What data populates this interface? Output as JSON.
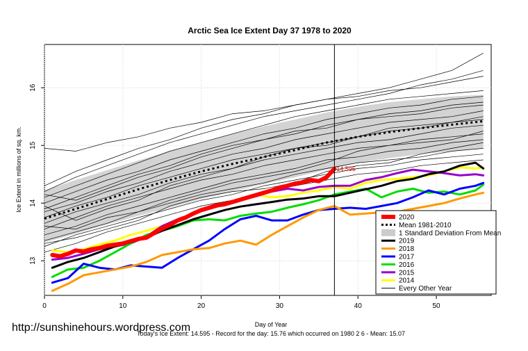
{
  "chart_data": {
    "type": "line",
    "title": "Arctic Sea Ice Extent Day 37 1978 to 2020",
    "xlabel": "Day of Year",
    "ylabel": "Ice Extent in millions of sq. km.",
    "xlim": [
      0,
      57
    ],
    "ylim": [
      12.4,
      16.75
    ],
    "xticks": [
      0,
      10,
      20,
      30,
      40,
      50
    ],
    "yticks": [
      13,
      14,
      15,
      16
    ],
    "grid": true,
    "legend_position": "bottom-right",
    "current_day": 37,
    "current_value_label": "14.595",
    "footer_text": "Today's Ice Extent: 14.595  - Record for the day: 15.76 which occurred on 1980 2 6  - Mean: 15.07",
    "watermark": "http://sunshinehours.wordpress.com",
    "std_band": {
      "name": "1 Standard Deviation From Mean",
      "x": [
        0,
        4,
        8,
        12,
        16,
        20,
        24,
        28,
        32,
        36,
        40,
        44,
        48,
        52,
        56
      ],
      "lower": [
        13.32,
        13.47,
        13.63,
        13.78,
        13.92,
        14.07,
        14.2,
        14.33,
        14.45,
        14.58,
        14.7,
        14.78,
        14.85,
        14.9,
        14.95
      ],
      "upper": [
        14.22,
        14.4,
        14.57,
        14.74,
        14.9,
        15.05,
        15.2,
        15.33,
        15.45,
        15.57,
        15.67,
        15.75,
        15.8,
        15.85,
        15.88
      ]
    },
    "mean": {
      "name": "Mean 1981-2010",
      "x": [
        0,
        4,
        8,
        12,
        16,
        20,
        24,
        28,
        32,
        36,
        40,
        44,
        48,
        52,
        56
      ],
      "y": [
        13.73,
        13.9,
        14.07,
        14.24,
        14.4,
        14.55,
        14.68,
        14.8,
        14.92,
        15.05,
        15.15,
        15.23,
        15.3,
        15.36,
        15.42
      ]
    },
    "series": [
      {
        "name": "2020",
        "color": "#ff0000",
        "width": 6,
        "x": [
          1,
          2,
          3,
          4,
          5,
          6,
          7,
          8,
          9,
          10,
          11,
          12,
          13,
          14,
          15,
          16,
          17,
          18,
          19,
          20,
          21,
          22,
          23,
          24,
          25,
          26,
          27,
          28,
          29,
          30,
          31,
          32,
          33,
          34,
          35,
          36,
          37
        ],
        "y": [
          13.1,
          13.08,
          13.12,
          13.18,
          13.16,
          13.2,
          13.22,
          13.26,
          13.28,
          13.3,
          13.34,
          13.38,
          13.4,
          13.48,
          13.56,
          13.62,
          13.7,
          13.75,
          13.82,
          13.88,
          13.92,
          13.96,
          13.98,
          14.02,
          14.06,
          14.1,
          14.14,
          14.18,
          14.22,
          14.27,
          14.3,
          14.34,
          14.36,
          14.4,
          14.38,
          14.45,
          14.595
        ]
      },
      {
        "name": "2019",
        "color": "#000000",
        "width": 3,
        "x": [
          1,
          3,
          5,
          7,
          9,
          11,
          13,
          15,
          17,
          19,
          21,
          23,
          25,
          27,
          29,
          31,
          33,
          35,
          37,
          39,
          41,
          43,
          45,
          47,
          49,
          51,
          53,
          55,
          56
        ],
        "y": [
          12.88,
          12.98,
          13.05,
          13.15,
          13.25,
          13.32,
          13.4,
          13.52,
          13.62,
          13.72,
          13.8,
          13.88,
          13.94,
          13.98,
          14.02,
          14.06,
          14.08,
          14.12,
          14.12,
          14.18,
          14.24,
          14.3,
          14.38,
          14.42,
          14.5,
          14.55,
          14.65,
          14.7,
          14.6
        ]
      },
      {
        "name": "2018",
        "color": "#ff9900",
        "width": 3,
        "x": [
          1,
          3,
          5,
          7,
          9,
          11,
          13,
          15,
          17,
          19,
          21,
          23,
          25,
          27,
          29,
          31,
          33,
          35,
          37,
          39,
          41,
          43,
          45,
          47,
          49,
          51,
          53,
          55,
          56
        ],
        "y": [
          12.48,
          12.6,
          12.75,
          12.8,
          12.85,
          12.9,
          12.98,
          13.1,
          13.15,
          13.2,
          13.22,
          13.3,
          13.35,
          13.28,
          13.45,
          13.6,
          13.75,
          13.88,
          13.95,
          13.8,
          13.82,
          13.84,
          13.85,
          13.9,
          13.95,
          14.0,
          14.08,
          14.15,
          14.18
        ]
      },
      {
        "name": "2017",
        "color": "#0000ff",
        "width": 3,
        "x": [
          1,
          3,
          5,
          7,
          9,
          11,
          13,
          15,
          17,
          19,
          21,
          23,
          25,
          27,
          29,
          31,
          33,
          35,
          37,
          39,
          41,
          43,
          45,
          47,
          49,
          51,
          53,
          55,
          56
        ],
        "y": [
          12.62,
          12.7,
          12.95,
          12.88,
          12.85,
          12.92,
          12.9,
          12.88,
          13.05,
          13.2,
          13.35,
          13.55,
          13.72,
          13.78,
          13.7,
          13.7,
          13.8,
          13.88,
          13.9,
          13.92,
          13.9,
          13.95,
          14.0,
          14.1,
          14.22,
          14.15,
          14.25,
          14.3,
          14.35
        ]
      },
      {
        "name": "2016",
        "color": "#00dd00",
        "width": 3,
        "x": [
          1,
          3,
          5,
          7,
          9,
          11,
          13,
          15,
          17,
          19,
          21,
          23,
          25,
          27,
          29,
          31,
          33,
          35,
          37,
          39,
          41,
          43,
          45,
          47,
          49,
          51,
          53,
          55,
          56
        ],
        "y": [
          12.72,
          12.85,
          12.88,
          13.0,
          13.15,
          13.3,
          13.45,
          13.52,
          13.6,
          13.7,
          13.72,
          13.7,
          13.78,
          13.82,
          13.85,
          13.92,
          13.98,
          14.05,
          14.15,
          14.2,
          14.25,
          14.1,
          14.2,
          14.25,
          14.18,
          14.2,
          14.15,
          14.22,
          14.32
        ]
      },
      {
        "name": "2015",
        "color": "#9900cc",
        "width": 3,
        "x": [
          1,
          3,
          5,
          7,
          9,
          11,
          13,
          15,
          17,
          19,
          21,
          23,
          25,
          27,
          29,
          31,
          33,
          35,
          37,
          39,
          41,
          43,
          45,
          47,
          49,
          51,
          53,
          55,
          56
        ],
        "y": [
          13.02,
          13.05,
          13.12,
          13.2,
          13.25,
          13.3,
          13.42,
          13.6,
          13.72,
          13.82,
          13.9,
          13.98,
          14.05,
          14.12,
          14.2,
          14.25,
          14.22,
          14.28,
          14.3,
          14.3,
          14.4,
          14.45,
          14.52,
          14.58,
          14.55,
          14.52,
          14.48,
          14.5,
          14.48
        ]
      },
      {
        "name": "2014",
        "color": "#ffff00",
        "width": 3,
        "x": [
          1,
          3,
          5,
          7,
          9,
          11,
          13,
          15,
          17,
          19,
          21,
          23,
          25,
          27,
          29,
          31,
          33,
          35,
          37,
          39,
          41,
          43,
          45,
          47,
          49,
          51,
          53,
          55,
          56
        ],
        "y": [
          13.18,
          13.15,
          13.2,
          13.28,
          13.35,
          13.45,
          13.52,
          13.6,
          13.72,
          13.82,
          13.9,
          13.98,
          14.08,
          14.15,
          14.1,
          14.12,
          14.18,
          14.22,
          14.28,
          14.25,
          14.35,
          14.4,
          14.42,
          14.45,
          14.48,
          14.55,
          14.62,
          14.6,
          14.62
        ]
      }
    ],
    "background_years": {
      "name": "Every Other Year",
      "x": [
        0,
        4,
        8,
        12,
        16,
        20,
        24,
        28,
        32,
        36,
        40,
        44,
        48,
        52,
        56
      ],
      "lines": [
        [
          14.3,
          14.55,
          14.75,
          14.95,
          15.1,
          15.3,
          15.45,
          15.55,
          15.7,
          15.8,
          15.9,
          16.0,
          16.15,
          16.3,
          16.6
        ],
        [
          14.2,
          14.45,
          14.65,
          14.85,
          15.05,
          15.2,
          15.35,
          15.5,
          15.6,
          15.7,
          15.8,
          15.9,
          16.05,
          16.15,
          16.3
        ],
        [
          14.95,
          14.9,
          15.05,
          15.15,
          15.3,
          15.4,
          15.55,
          15.6,
          15.7,
          15.8,
          15.85,
          15.95,
          16.0,
          16.1,
          16.2
        ],
        [
          14.1,
          14.3,
          14.5,
          14.7,
          14.9,
          15.05,
          15.2,
          15.35,
          15.5,
          15.6,
          15.7,
          15.8,
          15.85,
          15.9,
          15.95
        ],
        [
          14.0,
          14.2,
          14.4,
          14.55,
          14.75,
          14.9,
          15.05,
          15.2,
          15.3,
          15.45,
          15.55,
          15.65,
          15.7,
          15.8,
          15.85
        ],
        [
          13.9,
          14.1,
          14.3,
          14.5,
          14.65,
          14.85,
          15.0,
          15.1,
          15.2,
          15.35,
          15.45,
          15.5,
          15.55,
          15.65,
          15.7
        ],
        [
          13.85,
          14.0,
          14.2,
          14.35,
          14.55,
          14.7,
          14.85,
          14.95,
          15.1,
          15.2,
          15.3,
          15.4,
          15.45,
          15.5,
          15.6
        ],
        [
          13.75,
          13.95,
          14.1,
          14.3,
          14.45,
          14.6,
          14.75,
          14.85,
          14.95,
          15.05,
          15.15,
          15.25,
          15.3,
          15.4,
          15.45
        ],
        [
          13.65,
          13.85,
          14.0,
          14.15,
          14.35,
          14.5,
          14.6,
          14.75,
          14.85,
          14.95,
          15.05,
          15.1,
          15.2,
          15.3,
          15.35
        ],
        [
          13.55,
          13.75,
          13.95,
          14.1,
          14.25,
          14.4,
          14.5,
          14.65,
          14.75,
          14.85,
          14.95,
          15.0,
          15.1,
          15.15,
          15.2
        ],
        [
          13.45,
          13.6,
          13.8,
          13.95,
          14.1,
          14.25,
          14.4,
          14.5,
          14.6,
          14.75,
          14.8,
          14.9,
          14.95,
          15.05,
          15.1
        ],
        [
          13.35,
          13.5,
          13.65,
          13.85,
          14.0,
          14.15,
          14.25,
          14.35,
          14.5,
          14.6,
          14.7,
          14.75,
          14.8,
          14.9,
          14.95
        ],
        [
          13.25,
          13.45,
          13.6,
          13.75,
          13.9,
          14.05,
          14.15,
          14.3,
          14.4,
          14.5,
          14.6,
          14.65,
          14.75,
          14.8,
          14.85
        ],
        [
          13.15,
          13.3,
          13.5,
          13.65,
          13.8,
          13.95,
          14.05,
          14.2,
          14.3,
          14.4,
          14.5,
          14.55,
          14.65,
          14.7,
          14.75
        ],
        [
          14.15,
          14.05,
          14.25,
          14.45,
          14.6,
          14.8,
          14.95,
          15.1,
          15.25,
          15.3,
          15.45,
          15.55,
          15.6,
          15.7,
          15.75
        ],
        [
          13.95,
          13.7,
          13.9,
          14.05,
          14.3,
          14.45,
          14.6,
          14.8,
          14.95,
          15.0,
          15.15,
          15.3,
          15.35,
          15.4,
          15.5
        ],
        [
          13.6,
          13.55,
          13.75,
          13.85,
          14.05,
          14.2,
          14.35,
          14.45,
          14.55,
          14.7,
          14.9,
          15.0,
          15.05,
          15.1,
          15.25
        ],
        [
          13.3,
          13.4,
          13.55,
          13.7,
          13.95,
          14.1,
          14.2,
          14.25,
          14.35,
          14.55,
          14.65,
          14.7,
          14.85,
          14.95,
          15.05
        ]
      ]
    }
  },
  "legend": {
    "items": [
      {
        "label": "2020",
        "color": "#ff0000",
        "kind": "line",
        "width": 6
      },
      {
        "label": "Mean 1981-2010",
        "color": "#000000",
        "kind": "dotted",
        "width": 3
      },
      {
        "label": "1 Standard Deviation From Mean",
        "color": "#cccccc",
        "kind": "box",
        "width": 10
      },
      {
        "label": "2019",
        "color": "#000000",
        "kind": "line",
        "width": 3
      },
      {
        "label": "2018",
        "color": "#ff9900",
        "kind": "line",
        "width": 3
      },
      {
        "label": "2017",
        "color": "#0000ff",
        "kind": "line",
        "width": 3
      },
      {
        "label": "2016",
        "color": "#00dd00",
        "kind": "line",
        "width": 3
      },
      {
        "label": "2015",
        "color": "#9900cc",
        "kind": "line",
        "width": 3
      },
      {
        "label": "2014",
        "color": "#ffff00",
        "kind": "line",
        "width": 3
      },
      {
        "label": "Every Other Year",
        "color": "#000000",
        "kind": "line",
        "width": 1
      }
    ]
  }
}
